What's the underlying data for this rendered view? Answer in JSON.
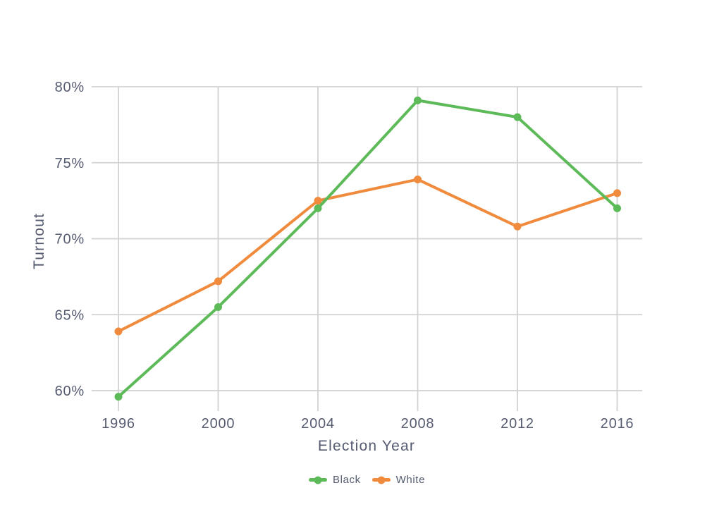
{
  "page": {
    "background_color": "#ffffff"
  },
  "chart_data": {
    "type": "line",
    "title": "",
    "xlabel": "Election Year",
    "ylabel": "Turnout",
    "x": [
      1996,
      2000,
      2004,
      2008,
      2012,
      2016
    ],
    "x_tick_labels": [
      "1996",
      "2000",
      "2004",
      "2008",
      "2012",
      "2016"
    ],
    "y_ticks": [
      {
        "value": 60,
        "label": "60%"
      },
      {
        "value": 65,
        "label": "65%"
      },
      {
        "value": 70,
        "label": "70%"
      },
      {
        "value": 75,
        "label": "75%"
      },
      {
        "value": 80,
        "label": "80%"
      }
    ],
    "ylim": [
      60,
      80
    ],
    "xlim": [
      1996,
      2016
    ],
    "grid": true,
    "legend_position": "bottom",
    "series": [
      {
        "name": "Black",
        "color": "#5dba58",
        "values": [
          59.6,
          65.5,
          72.0,
          79.1,
          78.0,
          72.0
        ]
      },
      {
        "name": "White",
        "color": "#f08b3d",
        "values": [
          63.9,
          67.2,
          72.5,
          73.9,
          70.8,
          73.0
        ]
      }
    ],
    "text_color": "#555b70",
    "grid_color": "#d2d2d2"
  }
}
